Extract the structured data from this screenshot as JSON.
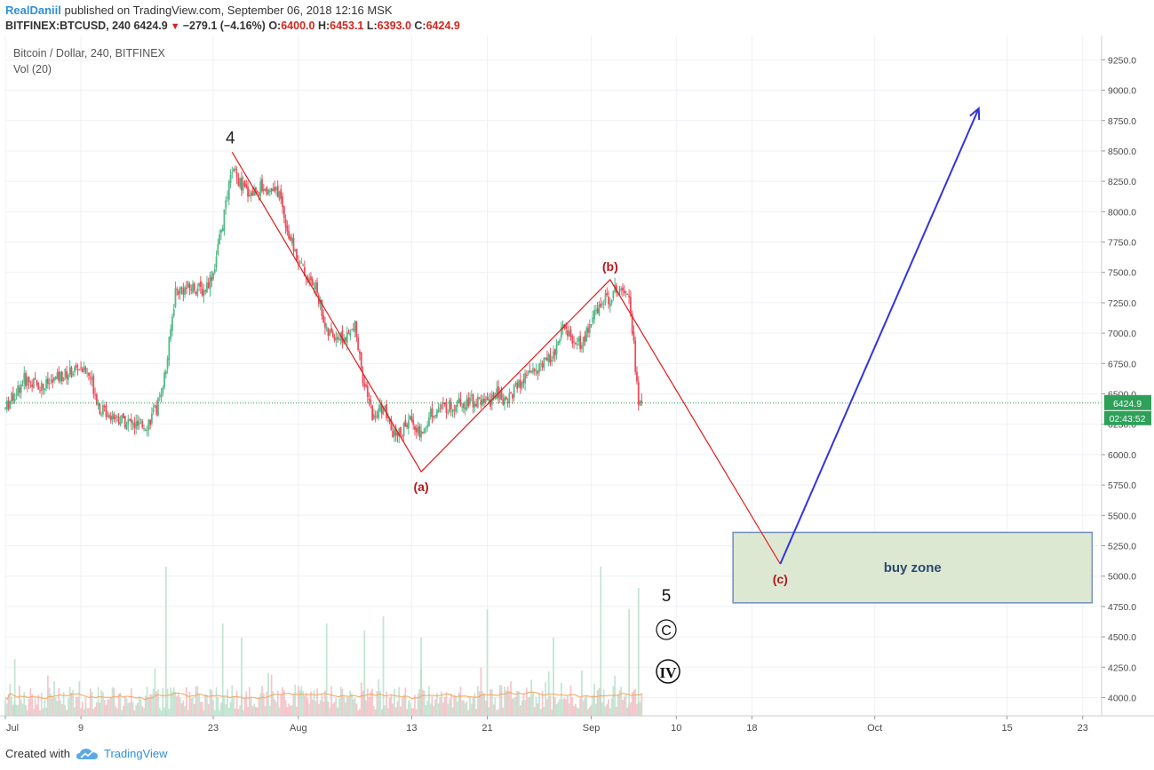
{
  "header": {
    "author": "RealDaniil",
    "published_text": "published on TradingView.com, September 06, 2018 12:16 MSK",
    "symbol": "BITFINEX:BTCUSD, 240",
    "last": "6424.9",
    "change": "−279.1 (−4.16%)",
    "open_label": "O:",
    "open": "6400.0",
    "high_label": "H:",
    "high": "6453.1",
    "low_label": "L:",
    "low": "6393.0",
    "close_label": "C:",
    "close": "6424.9"
  },
  "legend": {
    "title": "Bitcoin / Dollar, 240, BITFINEX",
    "volume": "Vol (20)"
  },
  "footer": {
    "created_with": "Created with",
    "brand": "TradingView"
  },
  "colors": {
    "up": "#53b987",
    "down": "#eb4d5c",
    "wave": "#e01b1b",
    "projection": "#3333dd",
    "buy_zone_fill": "#dde8d3",
    "buy_zone_border": "#6f8fc0",
    "price_line": "#2ea05a",
    "vol_ma": "#f2a55b"
  },
  "chart_data": {
    "type": "candlestick",
    "title": "Bitcoin / Dollar, 240, BITFINEX",
    "x_tick_labels": [
      "Jul",
      "9",
      "23",
      "Aug",
      "13",
      "21",
      "Sep",
      "10",
      "18",
      "Oct",
      "15",
      "23"
    ],
    "x_ticks": [
      "2018-07-01",
      "2018-07-09",
      "2018-07-23",
      "2018-08-01",
      "2018-08-13",
      "2018-08-21",
      "2018-09-01",
      "2018-09-10",
      "2018-09-18",
      "2018-10-01",
      "2018-10-15",
      "2018-10-23"
    ],
    "x_range": [
      "2018-07-01",
      "2018-10-25"
    ],
    "y_ticks": [
      4000,
      4250,
      4500,
      4750,
      5000,
      5250,
      5500,
      5750,
      6000,
      6250,
      6500,
      6750,
      7000,
      7250,
      7500,
      7750,
      8000,
      8250,
      8500,
      8750,
      9000,
      9250
    ],
    "y_tick_labels": [
      "4000.0",
      "4250.0",
      "4500.0",
      "4750.0",
      "5000.0",
      "5250.0",
      "5500.0",
      "5750.0",
      "6000.0",
      "6250.0",
      "6500.0",
      "6750.0",
      "7000.0",
      "7250.0",
      "7500.0",
      "7750.0",
      "8000.0",
      "8250.0",
      "8500.0",
      "8750.0",
      "9000.0",
      "9250.0"
    ],
    "ylim": [
      3850,
      9450
    ],
    "grid": true,
    "last_price": 6424.9,
    "last_price_label": "6424.9",
    "countdown_label": "02:43:52",
    "price_path": [
      [
        "2018-07-01",
        6380
      ],
      [
        "2018-07-03",
        6620
      ],
      [
        "2018-07-05",
        6560
      ],
      [
        "2018-07-07",
        6650
      ],
      [
        "2018-07-09",
        6720
      ],
      [
        "2018-07-10",
        6640
      ],
      [
        "2018-07-11",
        6380
      ],
      [
        "2018-07-13",
        6300
      ],
      [
        "2018-07-15",
        6230
      ],
      [
        "2018-07-16",
        6250
      ],
      [
        "2018-07-17",
        6380
      ],
      [
        "2018-07-18",
        6700
      ],
      [
        "2018-07-19",
        7350
      ],
      [
        "2018-07-21",
        7380
      ],
      [
        "2018-07-22",
        7350
      ],
      [
        "2018-07-23",
        7500
      ],
      [
        "2018-07-24",
        7900
      ],
      [
        "2018-07-25",
        8350
      ],
      [
        "2018-07-26",
        8200
      ],
      [
        "2018-07-27",
        8150
      ],
      [
        "2018-07-28",
        8200
      ],
      [
        "2018-07-30",
        8150
      ],
      [
        "2018-07-31",
        7800
      ],
      [
        "2018-08-01",
        7600
      ],
      [
        "2018-08-02",
        7450
      ],
      [
        "2018-08-03",
        7350
      ],
      [
        "2018-08-04",
        7000
      ],
      [
        "2018-08-06",
        6950
      ],
      [
        "2018-08-07",
        7050
      ],
      [
        "2018-08-08",
        6550
      ],
      [
        "2018-08-09",
        6300
      ],
      [
        "2018-08-10",
        6400
      ],
      [
        "2018-08-11",
        6150
      ],
      [
        "2018-08-12",
        6200
      ],
      [
        "2018-08-13",
        6300
      ],
      [
        "2018-08-14",
        6150
      ],
      [
        "2018-08-15",
        6350
      ],
      [
        "2018-08-17",
        6400
      ],
      [
        "2018-08-19",
        6450
      ],
      [
        "2018-08-21",
        6420
      ],
      [
        "2018-08-22",
        6500
      ],
      [
        "2018-08-23",
        6450
      ],
      [
        "2018-08-24",
        6550
      ],
      [
        "2018-08-26",
        6700
      ],
      [
        "2018-08-28",
        6800
      ],
      [
        "2018-08-29",
        7050
      ],
      [
        "2018-08-30",
        6950
      ],
      [
        "2018-08-31",
        6900
      ],
      [
        "2018-09-01",
        7100
      ],
      [
        "2018-09-02",
        7250
      ],
      [
        "2018-09-03",
        7300
      ],
      [
        "2018-09-04",
        7400
      ],
      [
        "2018-09-05",
        7350
      ],
      [
        "2018-09-05T12",
        6900
      ],
      [
        "2018-09-06",
        6400
      ],
      [
        "2018-09-06T08",
        6424.9
      ]
    ],
    "volume": {
      "label": "Vol (20)",
      "ylim": [
        0,
        120
      ],
      "spikes": [
        [
          "2018-07-02",
          40
        ],
        [
          "2018-07-18",
          105
        ],
        [
          "2018-07-24",
          65
        ],
        [
          "2018-07-26",
          55
        ],
        [
          "2018-08-04",
          65
        ],
        [
          "2018-08-08",
          60
        ],
        [
          "2018-08-10",
          70
        ],
        [
          "2018-08-14",
          55
        ],
        [
          "2018-08-21",
          75
        ],
        [
          "2018-08-28",
          55
        ],
        [
          "2018-09-02",
          105
        ],
        [
          "2018-09-05",
          75
        ],
        [
          "2018-09-06",
          90
        ]
      ]
    },
    "elliott_wave": [
      {
        "label": "4",
        "date": "2018-07-25",
        "price": 8490
      },
      {
        "label": "(a)",
        "date": "2018-08-14",
        "price": 5860
      },
      {
        "label": "(b)",
        "date": "2018-09-03",
        "price": 7440
      },
      {
        "label": "(c)",
        "date": "2018-09-21",
        "price": 5100
      }
    ],
    "projection": {
      "from": [
        "2018-09-21",
        5100
      ],
      "to": [
        "2018-10-12",
        8850
      ]
    },
    "buy_zone": {
      "label": "buy zone",
      "from_date": "2018-09-16",
      "to_date": "2018-10-24",
      "low": 4780,
      "high": 5360
    },
    "wave_degree_labels": [
      "5",
      "Ⓒ",
      "Ⓘ"
    ]
  }
}
